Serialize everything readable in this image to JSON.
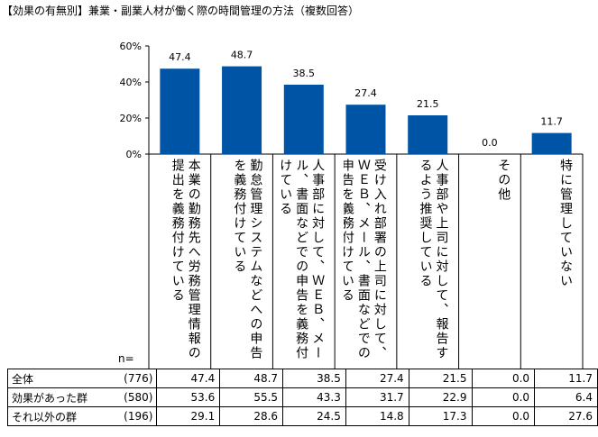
{
  "title": "【効果の有無別】兼業・副業人材が働く際の時間管理の方法（複数回答）",
  "chart_data": {
    "type": "bar",
    "categories": [
      "本業の勤務先へ労務管理情報の提出を義務付けている",
      "勤怠管理システムなどへの申告を義務付けている",
      "人事部に対して、ＷＥＢ、メール、書面などでの申告を義務付けている",
      "受け入れ部署の上司に対して、ＷＥＢ、メール、書面などでの申告を義務付けている",
      "人事部や上司に対して、報告するよう推奨している",
      "その他",
      "特に管理していない"
    ],
    "values": [
      47.4,
      48.7,
      38.5,
      27.4,
      21.5,
      0.0,
      11.7
    ],
    "value_labels": [
      "47.4",
      "48.7",
      "38.5",
      "27.4",
      "21.5",
      "0.0",
      "11.7"
    ],
    "yticks": [
      "0%",
      "20%",
      "40%",
      "60%"
    ],
    "ylim": [
      0,
      60
    ],
    "bar_color": "#0054a6",
    "grid": false
  },
  "table": {
    "n_label": "n=",
    "rows": [
      {
        "label": "全体",
        "n": "(776)",
        "values": [
          "47.4",
          "48.7",
          "38.5",
          "27.4",
          "21.5",
          "0.0",
          "11.7"
        ]
      },
      {
        "label": "効果があった群",
        "n": "(580)",
        "values": [
          "53.6",
          "55.5",
          "43.3",
          "31.7",
          "22.9",
          "0.0",
          "6.4"
        ]
      },
      {
        "label": "それ以外の群",
        "n": "(196)",
        "values": [
          "29.1",
          "28.6",
          "24.5",
          "14.8",
          "17.3",
          "0.0",
          "27.6"
        ]
      }
    ]
  }
}
